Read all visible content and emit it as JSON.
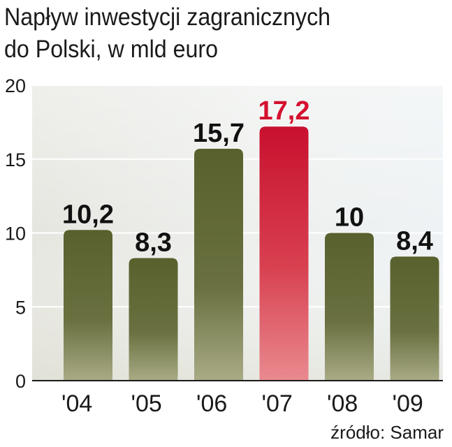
{
  "title_lines": [
    "Napływ inwestycji zagranicznych",
    "do Polski, w mld euro"
  ],
  "chart_data": {
    "type": "bar",
    "title": "Napływ inwestycji zagranicznych do Polski, w mld euro",
    "categories": [
      "'04",
      "'05",
      "'06",
      "'07",
      "'08",
      "'09"
    ],
    "values": [
      10.2,
      8.3,
      15.7,
      17.2,
      10,
      8.4
    ],
    "value_labels": [
      "10,2",
      "8,3",
      "15,7",
      "17,2",
      "10",
      "8,4"
    ],
    "highlight_index": 3,
    "ylim": [
      0,
      20
    ],
    "yticks": [
      0,
      5,
      10,
      15,
      20
    ],
    "grid": true,
    "xlabel": "",
    "ylabel": "",
    "colors": {
      "bar": "#58612d",
      "bar_light": "#a9ab85",
      "highlight": "#c8102e",
      "highlight_light": "#e98a8f",
      "label": "#111111",
      "highlight_label": "#d5102f"
    }
  },
  "source": "źródło: Samar"
}
